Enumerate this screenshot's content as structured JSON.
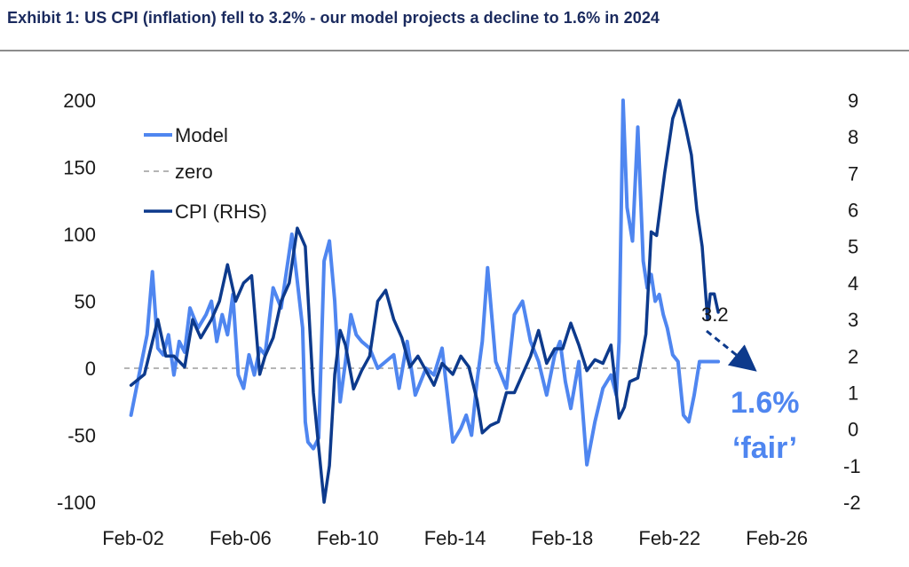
{
  "header": {
    "title": "Exhibit 1: US CPI (inflation) fell to 3.2% - our model projects a decline to 1.6% in 2024"
  },
  "colors": {
    "model": "#4f86f0",
    "cpi": "#0d3a8c",
    "zero": "#b5b5b5",
    "annotation": "#4f86f0",
    "arrow": "#0d3a8c"
  },
  "chart_data": {
    "type": "line",
    "title": "",
    "xlabel": "",
    "ylabel": "",
    "y2label": "",
    "x_ticks": [
      "Feb-02",
      "Feb-06",
      "Feb-10",
      "Feb-14",
      "Feb-18",
      "Feb-22",
      "Feb-26"
    ],
    "x_tick_years": [
      2002.083,
      2006.083,
      2010.083,
      2014.083,
      2018.083,
      2022.083,
      2026.083
    ],
    "xlim": [
      2001.75,
      2028.0
    ],
    "y_left": {
      "ticks": [
        "200",
        "150",
        "100",
        "50",
        "0",
        "-50",
        "-100"
      ],
      "lim": [
        -100,
        200
      ]
    },
    "y_right": {
      "ticks": [
        "9",
        "8",
        "7",
        "6",
        "5",
        "4",
        "3",
        "2",
        "1",
        "0",
        "-1",
        "-2"
      ],
      "lim": [
        -2,
        9
      ]
    },
    "grid": false,
    "legend": {
      "placement": "top-left",
      "items": [
        "Model",
        "zero",
        "CPI (RHS)"
      ]
    },
    "series": [
      {
        "name": "Model",
        "axis": "left",
        "x": [
          2002.0,
          2002.3,
          2002.6,
          2002.8,
          2003.0,
          2003.2,
          2003.4,
          2003.6,
          2003.8,
          2004.0,
          2004.2,
          2004.5,
          2004.8,
          2005.0,
          2005.2,
          2005.4,
          2005.6,
          2005.8,
          2006.0,
          2006.2,
          2006.4,
          2006.6,
          2006.8,
          2007.0,
          2007.3,
          2007.6,
          2008.0,
          2008.2,
          2008.4,
          2008.5,
          2008.6,
          2008.8,
          2009.0,
          2009.2,
          2009.4,
          2009.6,
          2009.8,
          2010.0,
          2010.2,
          2010.4,
          2010.6,
          2010.9,
          2011.2,
          2011.5,
          2011.8,
          2012.0,
          2012.3,
          2012.6,
          2013.0,
          2013.3,
          2013.6,
          2014.0,
          2014.3,
          2014.5,
          2014.7,
          2014.9,
          2015.1,
          2015.3,
          2015.6,
          2016.0,
          2016.3,
          2016.6,
          2016.9,
          2017.2,
          2017.5,
          2017.8,
          2018.0,
          2018.2,
          2018.4,
          2018.7,
          2019.0,
          2019.3,
          2019.6,
          2019.9,
          2020.1,
          2020.2,
          2020.35,
          2020.5,
          2020.7,
          2020.9,
          2021.1,
          2021.25,
          2021.4,
          2021.55,
          2021.7,
          2021.85,
          2022.0,
          2022.2,
          2022.4,
          2022.6,
          2022.8,
          2023.0,
          2023.2,
          2023.4,
          2023.6,
          2023.75,
          2023.9
        ],
        "y": [
          -35,
          -5,
          25,
          72,
          15,
          10,
          25,
          -5,
          20,
          12,
          45,
          30,
          40,
          50,
          20,
          40,
          25,
          55,
          -5,
          -15,
          10,
          -5,
          15,
          10,
          60,
          45,
          100,
          65,
          30,
          -40,
          -55,
          -60,
          -52,
          80,
          95,
          50,
          -25,
          5,
          40,
          25,
          20,
          15,
          0,
          5,
          10,
          -15,
          20,
          -20,
          0,
          -5,
          15,
          -55,
          -45,
          -35,
          -50,
          -10,
          20,
          75,
          5,
          -15,
          40,
          50,
          20,
          5,
          -20,
          10,
          20,
          -10,
          -30,
          5,
          -72,
          -40,
          -15,
          -5,
          -20,
          20,
          200,
          120,
          95,
          180,
          80,
          60,
          70,
          50,
          55,
          40,
          30,
          10,
          5,
          -35,
          -40,
          -20,
          5,
          5,
          5,
          5,
          5
        ]
      },
      {
        "name": "CPI (RHS)",
        "axis": "right",
        "x": [
          2002.0,
          2002.5,
          2003.0,
          2003.3,
          2003.6,
          2004.0,
          2004.3,
          2004.6,
          2005.0,
          2005.3,
          2005.6,
          2005.9,
          2006.2,
          2006.5,
          2006.8,
          2007.0,
          2007.3,
          2007.6,
          2007.9,
          2008.2,
          2008.5,
          2008.8,
          2009.0,
          2009.2,
          2009.4,
          2009.6,
          2009.8,
          2010.0,
          2010.3,
          2010.6,
          2010.9,
          2011.2,
          2011.5,
          2011.8,
          2012.1,
          2012.4,
          2012.7,
          2013.0,
          2013.3,
          2013.6,
          2014.0,
          2014.3,
          2014.6,
          2014.9,
          2015.1,
          2015.4,
          2015.7,
          2016.0,
          2016.3,
          2016.6,
          2016.9,
          2017.2,
          2017.5,
          2017.8,
          2018.1,
          2018.4,
          2018.7,
          2019.0,
          2019.3,
          2019.6,
          2019.9,
          2020.2,
          2020.4,
          2020.6,
          2020.9,
          2021.2,
          2021.4,
          2021.6,
          2021.9,
          2022.2,
          2022.45,
          2022.7,
          2022.9,
          2023.1,
          2023.3,
          2023.5,
          2023.6,
          2023.75,
          2023.9
        ],
        "y": [
          1.2,
          1.5,
          3.0,
          2.0,
          2.0,
          1.7,
          3.0,
          2.5,
          3.0,
          3.5,
          4.5,
          3.5,
          4.0,
          4.2,
          1.5,
          2.0,
          2.5,
          3.5,
          4.0,
          5.5,
          5.0,
          1.0,
          -0.5,
          -2.0,
          -1.0,
          1.5,
          2.7,
          2.3,
          1.1,
          1.6,
          2.0,
          3.5,
          3.8,
          3.0,
          2.5,
          1.7,
          2.0,
          1.6,
          1.2,
          1.8,
          1.5,
          2.0,
          1.7,
          0.8,
          -0.1,
          0.1,
          0.2,
          1.0,
          1.0,
          1.5,
          2.0,
          2.7,
          1.8,
          2.2,
          2.2,
          2.9,
          2.3,
          1.6,
          1.9,
          1.8,
          2.3,
          0.3,
          0.6,
          1.3,
          1.4,
          2.6,
          5.4,
          5.3,
          7.0,
          8.5,
          9.0,
          8.2,
          7.5,
          6.0,
          5.0,
          3.0,
          3.7,
          3.7,
          3.2
        ]
      }
    ],
    "annotations": {
      "current_value": "3.2",
      "forecast_value": "1.6%",
      "forecast_label": "‘fair’"
    }
  }
}
